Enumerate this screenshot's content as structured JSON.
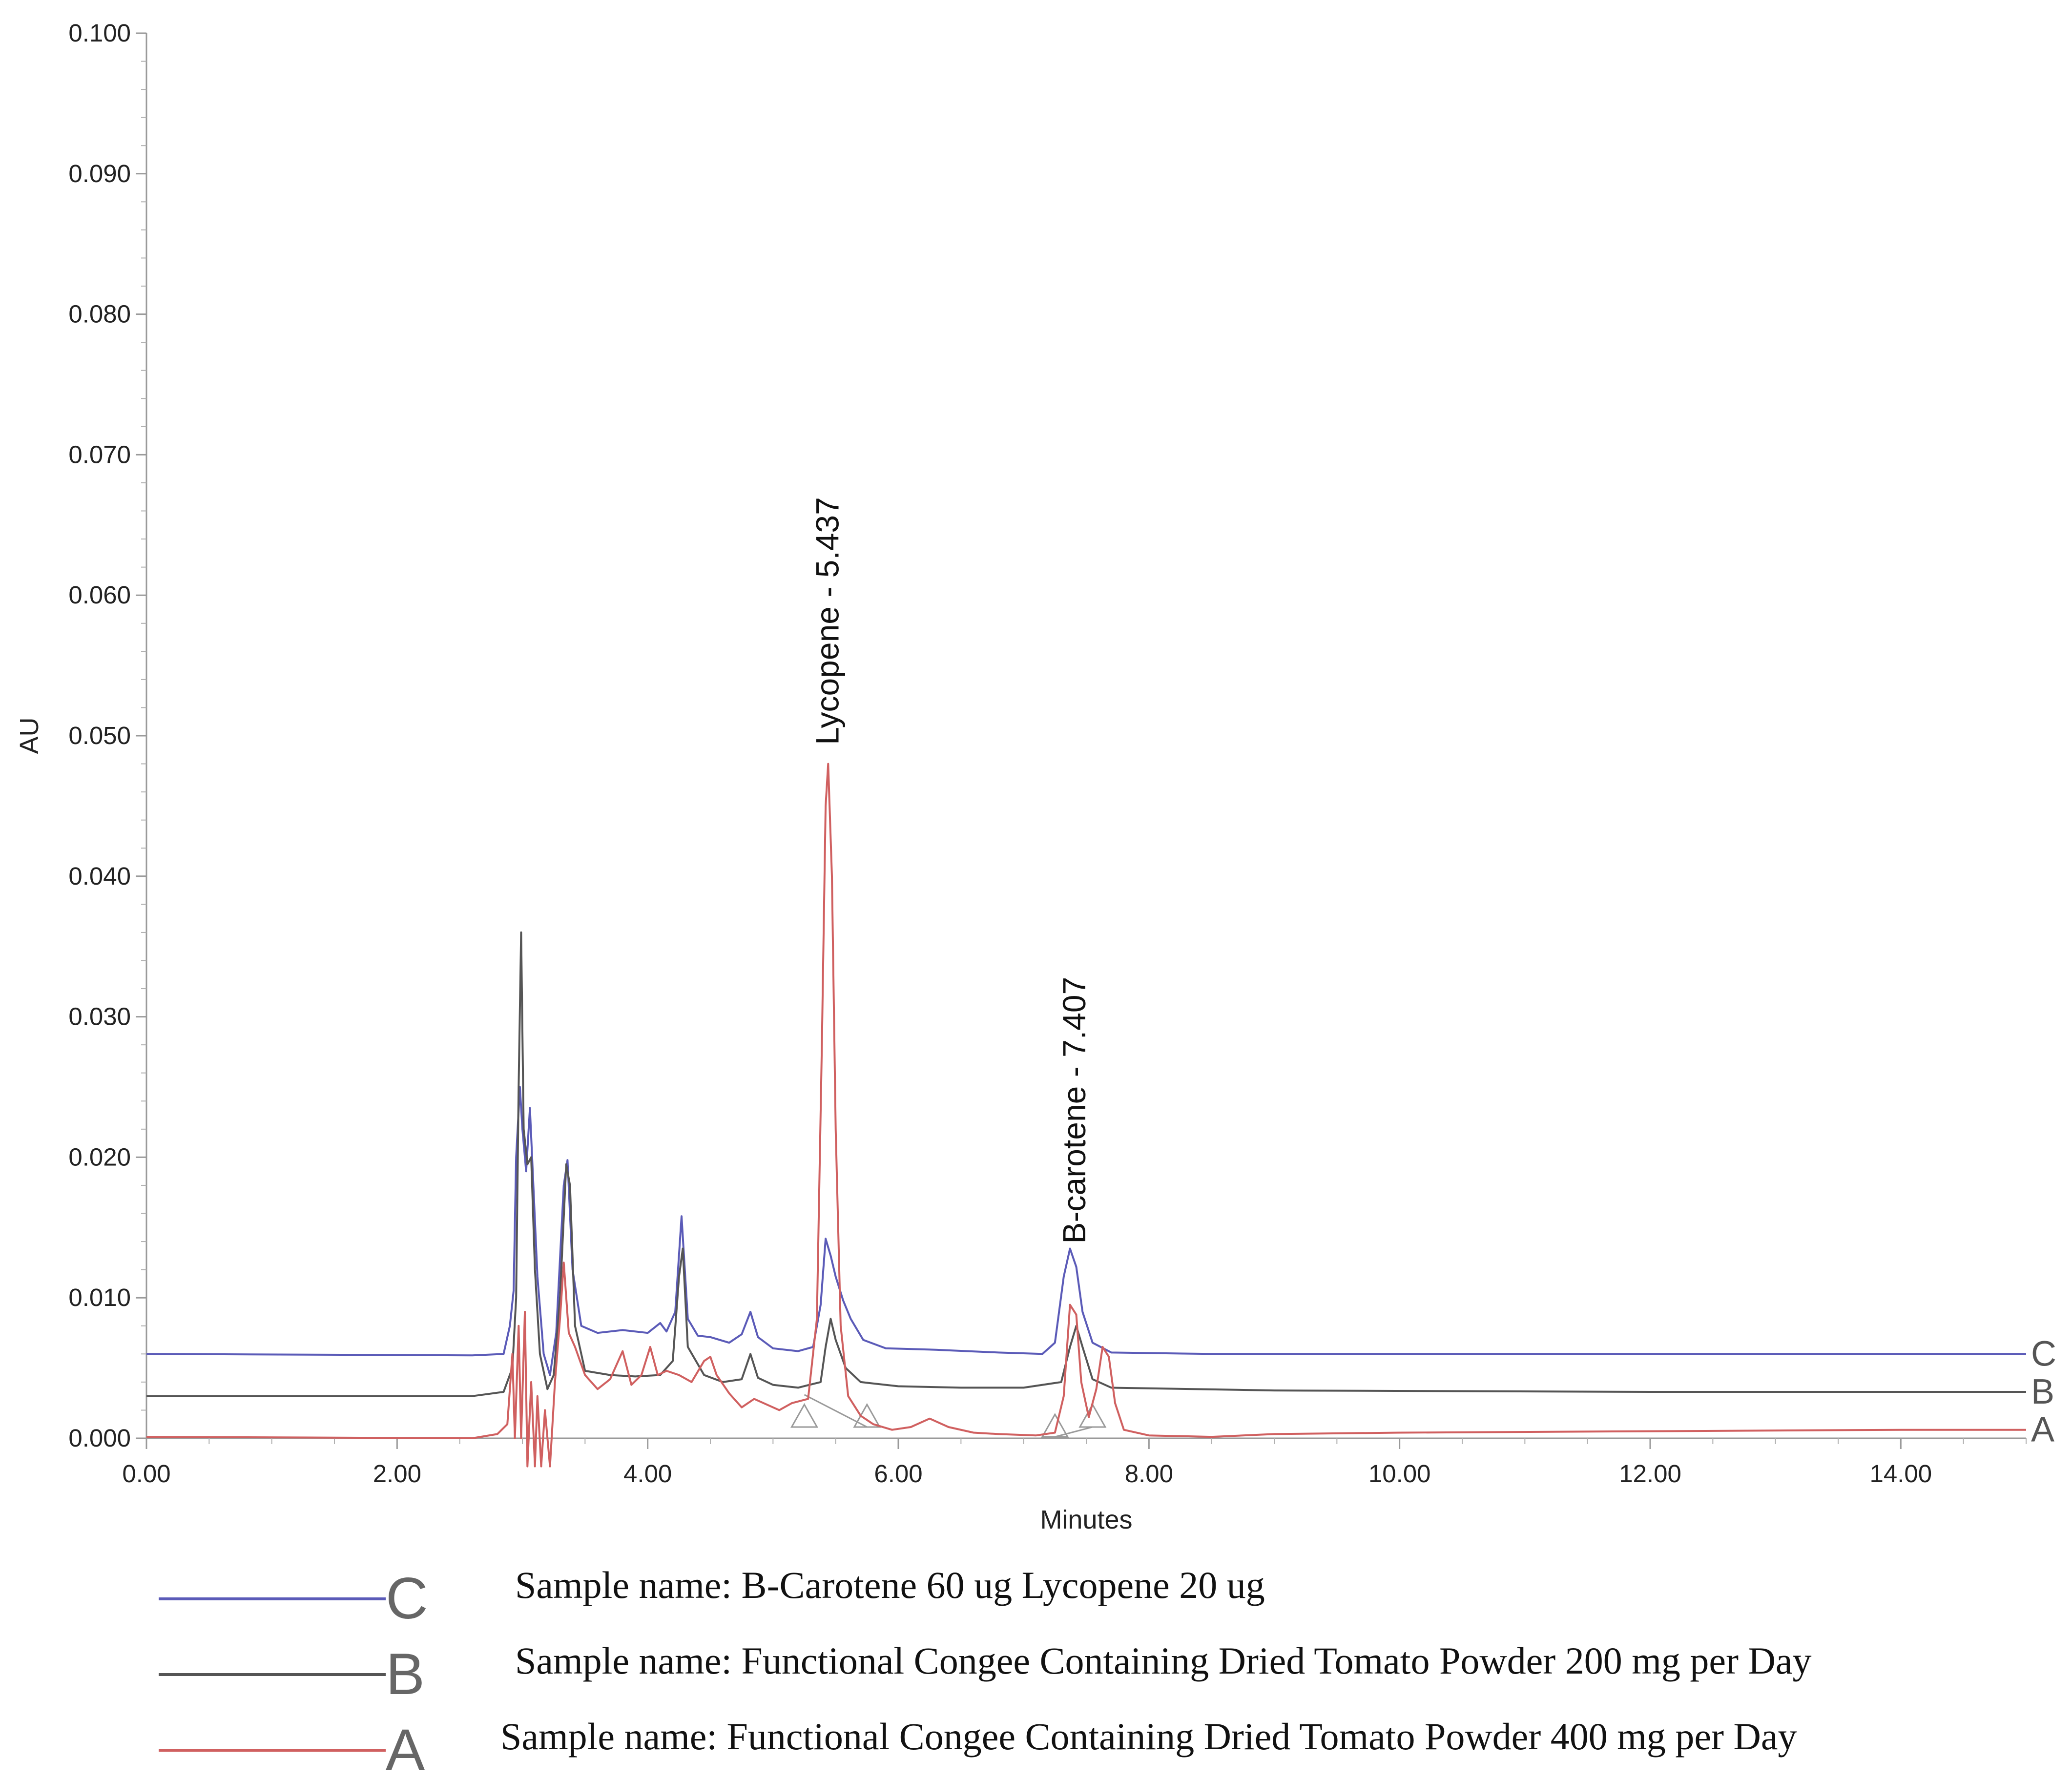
{
  "chart_data": {
    "type": "line",
    "title": "",
    "xlabel": "Minutes",
    "ylabel": "AU",
    "xlim": [
      0,
      15
    ],
    "ylim": [
      0,
      0.1
    ],
    "x_ticks": [
      "0.00",
      "2.00",
      "4.00",
      "6.00",
      "8.00",
      "10.00",
      "12.00",
      "14.00"
    ],
    "y_ticks": [
      "0.000",
      "0.010",
      "0.020",
      "0.030",
      "0.040",
      "0.050",
      "0.060",
      "0.070",
      "0.080",
      "0.090",
      "0.100"
    ],
    "grid": false,
    "peak_labels": [
      {
        "text": "Lycopene - 5.437",
        "x": 5.437,
        "y": 0.049
      },
      {
        "text": "B-carotene - 7.407",
        "x": 7.407,
        "y": 0.0135
      }
    ],
    "integration_markers": [
      {
        "x": 5.25,
        "y": 0.0008
      },
      {
        "x": 5.75,
        "y": 0.0008
      },
      {
        "x": 7.25,
        "y": 0.0001
      },
      {
        "x": 7.55,
        "y": 0.0008
      }
    ],
    "series": [
      {
        "name": "C",
        "color": "#5b5bb8",
        "points": [
          [
            0,
            0.006
          ],
          [
            2.6,
            0.0059
          ],
          [
            2.85,
            0.006
          ],
          [
            2.9,
            0.008
          ],
          [
            2.93,
            0.0105
          ],
          [
            2.95,
            0.02
          ],
          [
            2.98,
            0.025
          ],
          [
            3.0,
            0.022
          ],
          [
            3.03,
            0.019
          ],
          [
            3.06,
            0.0235
          ],
          [
            3.09,
            0.0175
          ],
          [
            3.12,
            0.0115
          ],
          [
            3.17,
            0.006
          ],
          [
            3.22,
            0.0045
          ],
          [
            3.27,
            0.0075
          ],
          [
            3.33,
            0.018
          ],
          [
            3.36,
            0.0198
          ],
          [
            3.4,
            0.012
          ],
          [
            3.47,
            0.008
          ],
          [
            3.6,
            0.0075
          ],
          [
            3.8,
            0.0077
          ],
          [
            4.0,
            0.0075
          ],
          [
            4.1,
            0.0082
          ],
          [
            4.15,
            0.0076
          ],
          [
            4.22,
            0.009
          ],
          [
            4.27,
            0.0158
          ],
          [
            4.32,
            0.0085
          ],
          [
            4.4,
            0.0073
          ],
          [
            4.5,
            0.0072
          ],
          [
            4.65,
            0.0068
          ],
          [
            4.75,
            0.0074
          ],
          [
            4.82,
            0.009
          ],
          [
            4.88,
            0.0072
          ],
          [
            5.0,
            0.0064
          ],
          [
            5.2,
            0.0062
          ],
          [
            5.32,
            0.0065
          ],
          [
            5.38,
            0.0095
          ],
          [
            5.42,
            0.0142
          ],
          [
            5.46,
            0.013
          ],
          [
            5.5,
            0.0115
          ],
          [
            5.56,
            0.0098
          ],
          [
            5.62,
            0.0085
          ],
          [
            5.72,
            0.007
          ],
          [
            5.9,
            0.0064
          ],
          [
            6.3,
            0.0063
          ],
          [
            6.8,
            0.0061
          ],
          [
            7.15,
            0.006
          ],
          [
            7.25,
            0.0068
          ],
          [
            7.32,
            0.0115
          ],
          [
            7.37,
            0.0135
          ],
          [
            7.42,
            0.0122
          ],
          [
            7.47,
            0.009
          ],
          [
            7.55,
            0.0068
          ],
          [
            7.7,
            0.0061
          ],
          [
            8.5,
            0.006
          ],
          [
            10.0,
            0.006
          ],
          [
            12.0,
            0.006
          ],
          [
            14.0,
            0.006
          ],
          [
            15.0,
            0.006
          ]
        ]
      },
      {
        "name": "B",
        "color": "#555555",
        "points": [
          [
            0,
            0.003
          ],
          [
            2.6,
            0.003
          ],
          [
            2.85,
            0.0033
          ],
          [
            2.92,
            0.005
          ],
          [
            2.95,
            0.01
          ],
          [
            2.97,
            0.025
          ],
          [
            2.99,
            0.036
          ],
          [
            3.01,
            0.022
          ],
          [
            3.04,
            0.0195
          ],
          [
            3.07,
            0.02
          ],
          [
            3.1,
            0.012
          ],
          [
            3.14,
            0.006
          ],
          [
            3.2,
            0.0035
          ],
          [
            3.25,
            0.0045
          ],
          [
            3.3,
            0.01
          ],
          [
            3.35,
            0.0195
          ],
          [
            3.38,
            0.018
          ],
          [
            3.42,
            0.008
          ],
          [
            3.5,
            0.0048
          ],
          [
            3.7,
            0.0045
          ],
          [
            3.9,
            0.0044
          ],
          [
            4.1,
            0.0045
          ],
          [
            4.2,
            0.0055
          ],
          [
            4.25,
            0.0115
          ],
          [
            4.28,
            0.0135
          ],
          [
            4.32,
            0.0065
          ],
          [
            4.45,
            0.0045
          ],
          [
            4.6,
            0.004
          ],
          [
            4.75,
            0.0042
          ],
          [
            4.82,
            0.006
          ],
          [
            4.88,
            0.0043
          ],
          [
            5.0,
            0.0038
          ],
          [
            5.2,
            0.0036
          ],
          [
            5.38,
            0.004
          ],
          [
            5.42,
            0.0065
          ],
          [
            5.46,
            0.0085
          ],
          [
            5.5,
            0.007
          ],
          [
            5.58,
            0.005
          ],
          [
            5.7,
            0.004
          ],
          [
            6.0,
            0.0037
          ],
          [
            6.5,
            0.0036
          ],
          [
            7.0,
            0.0036
          ],
          [
            7.3,
            0.004
          ],
          [
            7.37,
            0.0065
          ],
          [
            7.42,
            0.008
          ],
          [
            7.47,
            0.0065
          ],
          [
            7.55,
            0.0042
          ],
          [
            7.7,
            0.0036
          ],
          [
            9.0,
            0.0034
          ],
          [
            12.0,
            0.0033
          ],
          [
            15.0,
            0.0033
          ]
        ]
      },
      {
        "name": "A",
        "color": "#d06060",
        "points": [
          [
            0,
            0.0001
          ],
          [
            2.6,
            0.0
          ],
          [
            2.8,
            0.0003
          ],
          [
            2.88,
            0.001
          ],
          [
            2.92,
            0.006
          ],
          [
            2.94,
            0.0
          ],
          [
            2.97,
            0.008
          ],
          [
            2.99,
            0.0
          ],
          [
            3.02,
            0.009
          ],
          [
            3.04,
            -0.002
          ],
          [
            3.07,
            0.004
          ],
          [
            3.1,
            -0.002
          ],
          [
            3.12,
            0.003
          ],
          [
            3.15,
            -0.002
          ],
          [
            3.18,
            0.002
          ],
          [
            3.22,
            -0.002
          ],
          [
            3.26,
            0.004
          ],
          [
            3.3,
            0.0085
          ],
          [
            3.33,
            0.0125
          ],
          [
            3.37,
            0.0075
          ],
          [
            3.42,
            0.0065
          ],
          [
            3.5,
            0.0045
          ],
          [
            3.6,
            0.0035
          ],
          [
            3.7,
            0.0042
          ],
          [
            3.8,
            0.0062
          ],
          [
            3.87,
            0.0038
          ],
          [
            3.95,
            0.0045
          ],
          [
            4.02,
            0.0065
          ],
          [
            4.08,
            0.0045
          ],
          [
            4.15,
            0.0048
          ],
          [
            4.25,
            0.0045
          ],
          [
            4.35,
            0.004
          ],
          [
            4.45,
            0.0055
          ],
          [
            4.5,
            0.0058
          ],
          [
            4.55,
            0.0045
          ],
          [
            4.65,
            0.0032
          ],
          [
            4.75,
            0.0022
          ],
          [
            4.85,
            0.0028
          ],
          [
            4.95,
            0.0024
          ],
          [
            5.05,
            0.002
          ],
          [
            5.15,
            0.0025
          ],
          [
            5.28,
            0.0028
          ],
          [
            5.35,
            0.0085
          ],
          [
            5.39,
            0.028
          ],
          [
            5.42,
            0.045
          ],
          [
            5.44,
            0.048
          ],
          [
            5.47,
            0.04
          ],
          [
            5.5,
            0.022
          ],
          [
            5.54,
            0.008
          ],
          [
            5.6,
            0.003
          ],
          [
            5.7,
            0.0016
          ],
          [
            5.8,
            0.001
          ],
          [
            5.95,
            0.0006
          ],
          [
            6.1,
            0.0008
          ],
          [
            6.25,
            0.0014
          ],
          [
            6.4,
            0.0008
          ],
          [
            6.6,
            0.0004
          ],
          [
            6.8,
            0.0003
          ],
          [
            7.1,
            0.0002
          ],
          [
            7.25,
            0.0004
          ],
          [
            7.32,
            0.003
          ],
          [
            7.37,
            0.0095
          ],
          [
            7.42,
            0.0088
          ],
          [
            7.46,
            0.004
          ],
          [
            7.52,
            0.0015
          ],
          [
            7.58,
            0.0035
          ],
          [
            7.63,
            0.0065
          ],
          [
            7.68,
            0.0058
          ],
          [
            7.73,
            0.0025
          ],
          [
            7.8,
            0.0006
          ],
          [
            8.0,
            0.0002
          ],
          [
            8.5,
            0.0001
          ],
          [
            9.0,
            0.0003
          ],
          [
            10.0,
            0.0004
          ],
          [
            12.0,
            0.0005
          ],
          [
            14.0,
            0.0006
          ],
          [
            15.0,
            0.0006
          ]
        ]
      }
    ]
  },
  "legend": {
    "items": [
      {
        "letter": "C",
        "color": "#5b5bb8",
        "text": "Sample name: B-Carotene 60 ug Lycopene 20 ug"
      },
      {
        "letter": "B",
        "color": "#555555",
        "text": "Sample name: Functional Congee Containing Dried Tomato Powder 200 mg per Day"
      },
      {
        "letter": "A",
        "color": "#d06060",
        "text": "Sample name: Functional Congee Containing Dried Tomato Powder 400 mg per Day"
      }
    ]
  }
}
